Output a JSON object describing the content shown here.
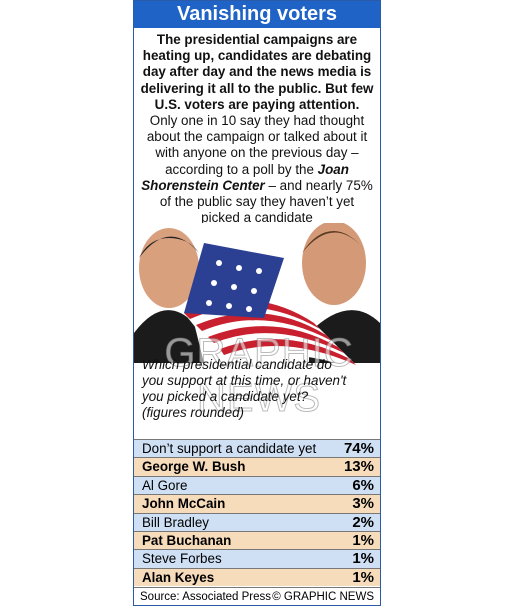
{
  "header": {
    "title": "Vanishing voters"
  },
  "intro": {
    "lead": "The presidential campaigns are heating up, candidates are debating day after day and the news media is delivering it all to the public. But few U.S. voters are paying attention.",
    "text_before": "Only one in 10 say they had thought about the campaign or talked about it with anyone on the previous day – according to a poll by the ",
    "emphasis": "Joan Shorenstein Center",
    "text_after": " – and nearly 75% of the public say they haven’t yet picked a candidate"
  },
  "watermark": "GRAPHIC NEWS",
  "question": "Which presidential candidate do you support at this time, or haven't you picked a candidate yet? (figures rounded)",
  "table": {
    "rows": [
      [
        "Don’t support a candidate yet",
        "74%"
      ],
      [
        "George W. Bush",
        "13%"
      ],
      [
        "Al Gore",
        "6%"
      ],
      [
        "John McCain",
        "3%"
      ],
      [
        "Bill Bradley",
        "2%"
      ],
      [
        "Pat Buchanan",
        "1%"
      ],
      [
        "Steve Forbes",
        "1%"
      ],
      [
        "Alan Keyes",
        "1%"
      ]
    ]
  },
  "footer": {
    "source": "Source: Associated Press",
    "credit": "© GRAPHIC NEWS"
  }
}
